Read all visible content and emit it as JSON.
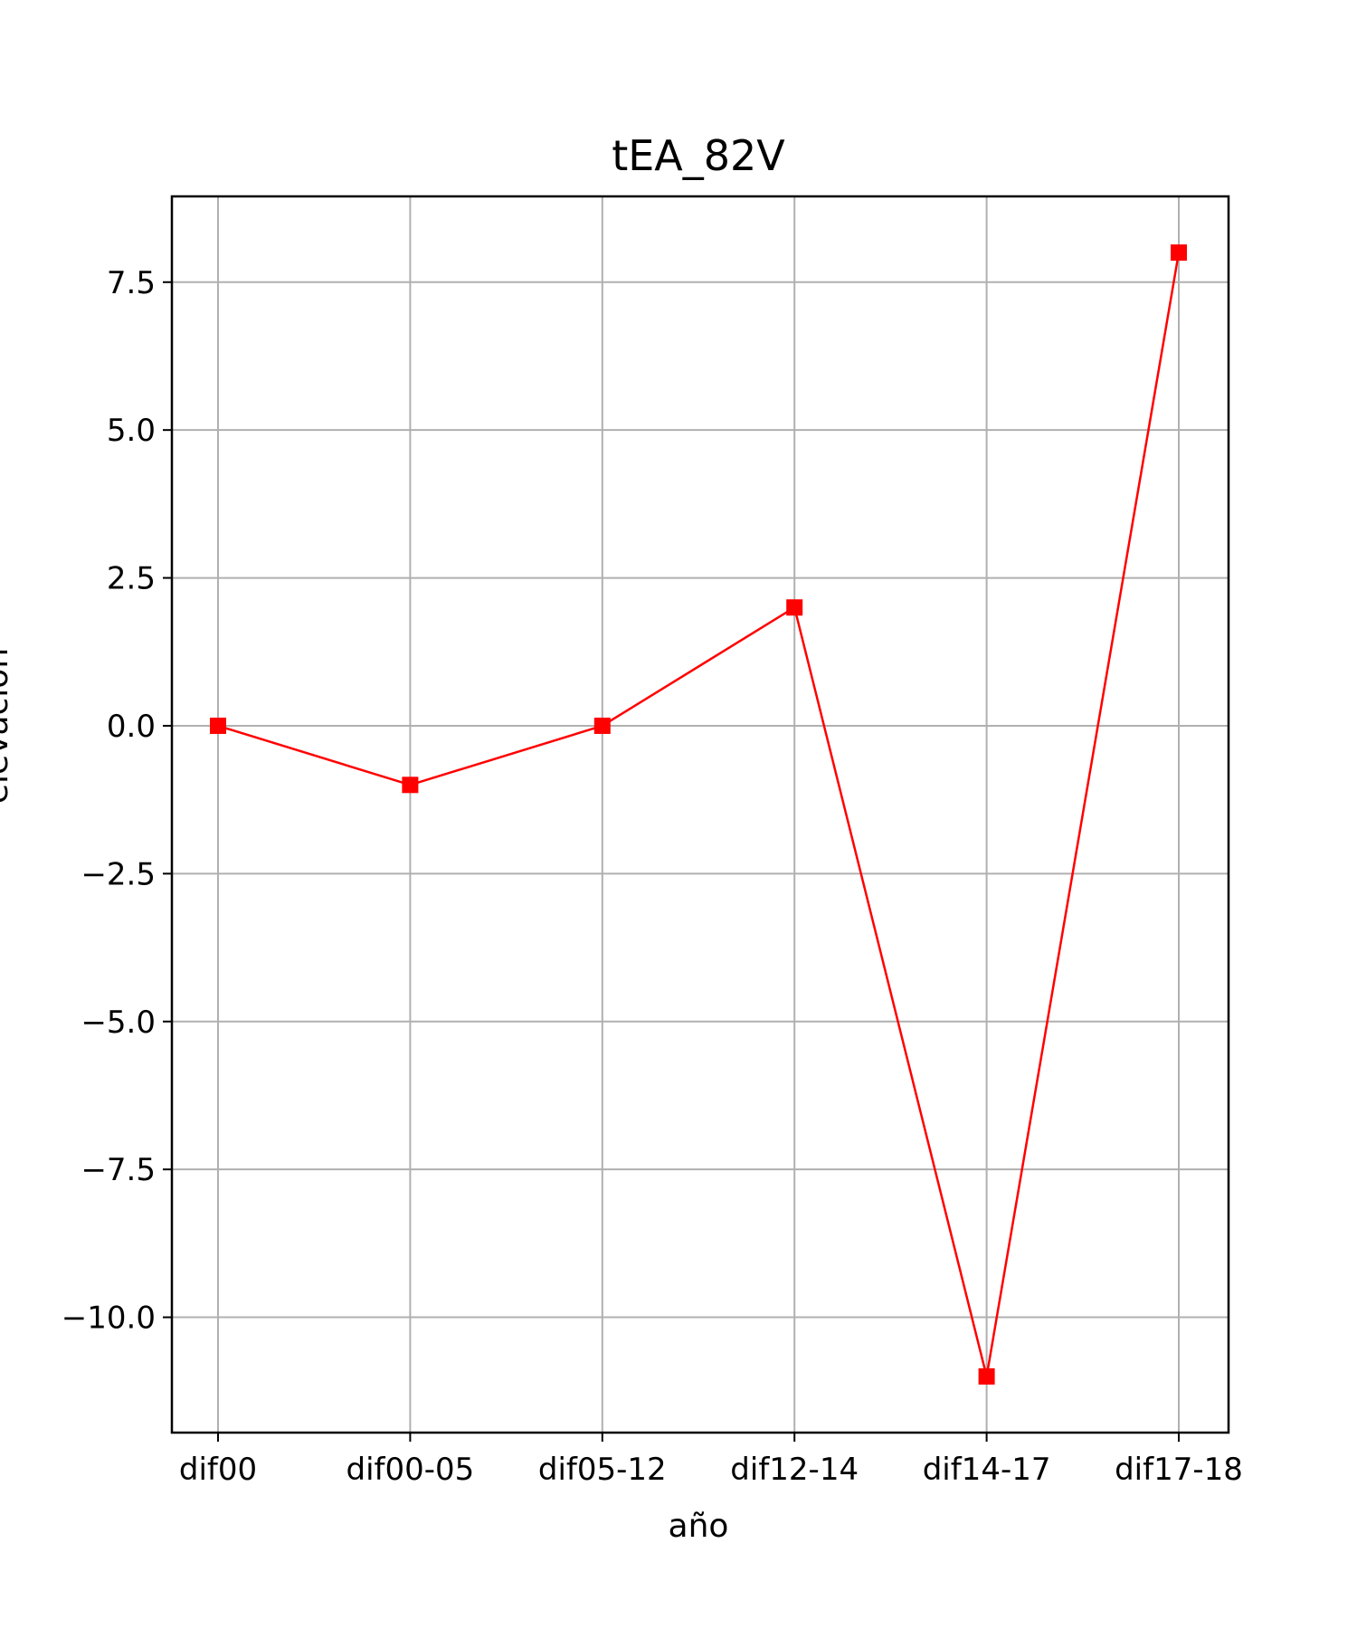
{
  "chart_data": {
    "type": "line",
    "title": "tEA_82V",
    "xlabel": "año",
    "ylabel": "elevación",
    "categories": [
      "dif00",
      "dif00-05",
      "dif05-12",
      "dif12-14",
      "dif14-17",
      "dif17-18"
    ],
    "series": [
      {
        "values": [
          0,
          -1,
          0,
          2,
          -11,
          8
        ],
        "color": "#ff0000",
        "marker": "square"
      }
    ],
    "ylim": [
      -11.95,
      8.95
    ],
    "yticks": [
      -10.0,
      -7.5,
      -5.0,
      -2.5,
      0.0,
      2.5,
      5.0,
      7.5
    ],
    "ytick_labels": [
      "−10.0",
      "−7.5",
      "−5.0",
      "−2.5",
      "0.0",
      "2.5",
      "5.0",
      "7.5"
    ],
    "grid": true,
    "grid_color": "#b0b0b0",
    "axis_color": "#000000"
  }
}
